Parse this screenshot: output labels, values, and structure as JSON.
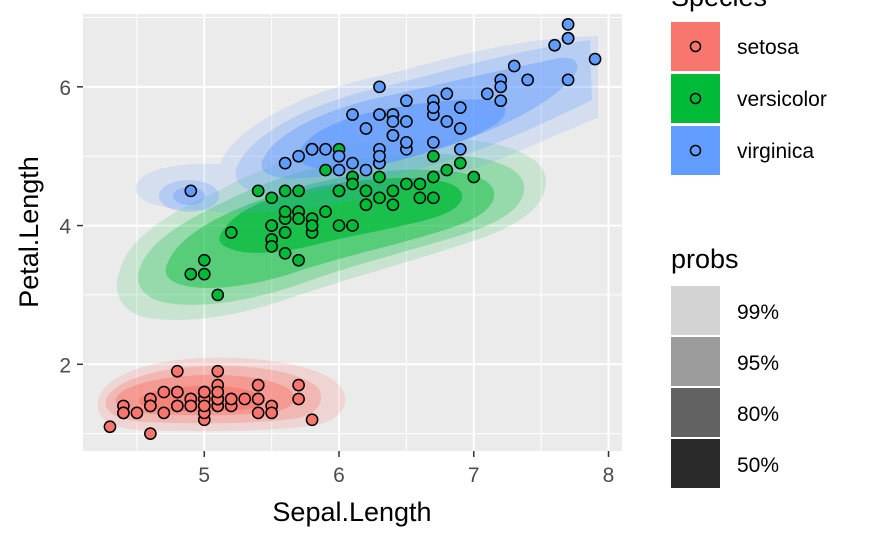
{
  "chart_data": {
    "type": "scatter",
    "title": "",
    "xlabel": "Sepal.Length",
    "ylabel": "Petal.Length",
    "xlim": [
      4.1,
      8.1
    ],
    "ylim": [
      0.75,
      7.05
    ],
    "x_ticks": [
      5,
      6,
      7,
      8
    ],
    "y_ticks": [
      2,
      4,
      6
    ],
    "x_tick_labels": [
      "5",
      "6",
      "7",
      "8"
    ],
    "y_tick_labels": [
      "2",
      "4",
      "6"
    ],
    "grid": true,
    "panel_background": "#ebebeb",
    "legend_position": "right",
    "density_levels": [
      "99%",
      "95%",
      "80%",
      "50%"
    ],
    "legends": [
      {
        "title": "Species",
        "entries": [
          {
            "label": "setosa",
            "color": "#F8766D"
          },
          {
            "label": "versicolor",
            "color": "#00BA38"
          },
          {
            "label": "virginica",
            "color": "#619CFF"
          }
        ]
      },
      {
        "title": "probs",
        "entries": [
          {
            "label": "99%",
            "color": "#d3d3d3"
          },
          {
            "label": "95%",
            "color": "#9b9b9b"
          },
          {
            "label": "80%",
            "color": "#626262"
          },
          {
            "label": "50%",
            "color": "#2a2a2a"
          }
        ]
      }
    ],
    "series": [
      {
        "name": "setosa",
        "color": "#F8766D",
        "points": [
          [
            5.1,
            1.4
          ],
          [
            4.9,
            1.4
          ],
          [
            4.7,
            1.3
          ],
          [
            4.6,
            1.5
          ],
          [
            5.0,
            1.4
          ],
          [
            5.4,
            1.7
          ],
          [
            4.6,
            1.4
          ],
          [
            5.0,
            1.5
          ],
          [
            4.4,
            1.4
          ],
          [
            4.9,
            1.5
          ],
          [
            5.4,
            1.5
          ],
          [
            4.8,
            1.6
          ],
          [
            4.8,
            1.4
          ],
          [
            4.3,
            1.1
          ],
          [
            5.8,
            1.2
          ],
          [
            5.7,
            1.5
          ],
          [
            5.4,
            1.3
          ],
          [
            5.1,
            1.4
          ],
          [
            5.7,
            1.7
          ],
          [
            5.1,
            1.5
          ],
          [
            5.4,
            1.7
          ],
          [
            5.1,
            1.5
          ],
          [
            4.6,
            1.0
          ],
          [
            5.1,
            1.7
          ],
          [
            4.8,
            1.9
          ],
          [
            5.0,
            1.6
          ],
          [
            5.0,
            1.6
          ],
          [
            5.2,
            1.5
          ],
          [
            5.2,
            1.4
          ],
          [
            4.7,
            1.6
          ],
          [
            4.8,
            1.6
          ],
          [
            5.4,
            1.5
          ],
          [
            5.2,
            1.5
          ],
          [
            5.5,
            1.4
          ],
          [
            4.9,
            1.5
          ],
          [
            5.0,
            1.2
          ],
          [
            5.5,
            1.3
          ],
          [
            4.9,
            1.4
          ],
          [
            4.4,
            1.3
          ],
          [
            5.1,
            1.5
          ],
          [
            5.0,
            1.3
          ],
          [
            4.5,
            1.3
          ],
          [
            4.4,
            1.3
          ],
          [
            5.0,
            1.6
          ],
          [
            5.1,
            1.9
          ],
          [
            4.8,
            1.4
          ],
          [
            5.1,
            1.6
          ],
          [
            4.6,
            1.4
          ],
          [
            5.3,
            1.5
          ],
          [
            5.0,
            1.4
          ]
        ]
      },
      {
        "name": "versicolor",
        "color": "#00BA38",
        "points": [
          [
            7.0,
            4.7
          ],
          [
            6.4,
            4.5
          ],
          [
            6.9,
            4.9
          ],
          [
            5.5,
            4.0
          ],
          [
            6.5,
            4.6
          ],
          [
            5.7,
            4.5
          ],
          [
            6.3,
            4.7
          ],
          [
            4.9,
            3.3
          ],
          [
            6.6,
            4.6
          ],
          [
            5.2,
            3.9
          ],
          [
            5.0,
            3.5
          ],
          [
            5.9,
            4.2
          ],
          [
            6.0,
            4.0
          ],
          [
            6.1,
            4.7
          ],
          [
            5.6,
            3.6
          ],
          [
            6.7,
            4.4
          ],
          [
            5.6,
            4.5
          ],
          [
            5.8,
            4.1
          ],
          [
            6.2,
            4.5
          ],
          [
            5.6,
            3.9
          ],
          [
            5.9,
            4.8
          ],
          [
            6.1,
            4.0
          ],
          [
            6.3,
            4.9
          ],
          [
            6.1,
            4.7
          ],
          [
            6.4,
            4.3
          ],
          [
            6.6,
            4.4
          ],
          [
            6.8,
            4.8
          ],
          [
            6.7,
            5.0
          ],
          [
            6.0,
            4.5
          ],
          [
            5.7,
            3.5
          ],
          [
            5.5,
            3.8
          ],
          [
            5.5,
            3.7
          ],
          [
            5.8,
            3.9
          ],
          [
            6.0,
            5.1
          ],
          [
            5.4,
            4.5
          ],
          [
            6.0,
            4.5
          ],
          [
            6.7,
            4.7
          ],
          [
            6.3,
            4.4
          ],
          [
            5.6,
            4.1
          ],
          [
            5.5,
            4.0
          ],
          [
            5.5,
            4.4
          ],
          [
            6.1,
            4.6
          ],
          [
            5.8,
            4.0
          ],
          [
            5.0,
            3.3
          ],
          [
            5.6,
            4.2
          ],
          [
            5.7,
            4.2
          ],
          [
            5.7,
            4.2
          ],
          [
            6.2,
            4.3
          ],
          [
            5.1,
            3.0
          ],
          [
            5.7,
            4.1
          ]
        ]
      },
      {
        "name": "virginica",
        "color": "#619CFF",
        "points": [
          [
            6.3,
            6.0
          ],
          [
            5.8,
            5.1
          ],
          [
            7.1,
            5.9
          ],
          [
            6.3,
            5.6
          ],
          [
            6.5,
            5.8
          ],
          [
            7.6,
            6.6
          ],
          [
            4.9,
            4.5
          ],
          [
            7.3,
            6.3
          ],
          [
            6.7,
            5.8
          ],
          [
            7.2,
            6.1
          ],
          [
            6.5,
            5.1
          ],
          [
            6.4,
            5.3
          ],
          [
            6.8,
            5.5
          ],
          [
            5.7,
            5.0
          ],
          [
            5.8,
            5.1
          ],
          [
            6.4,
            5.3
          ],
          [
            6.5,
            5.5
          ],
          [
            7.7,
            6.7
          ],
          [
            7.7,
            6.9
          ],
          [
            6.0,
            5.0
          ],
          [
            6.9,
            5.7
          ],
          [
            5.6,
            4.9
          ],
          [
            7.7,
            6.7
          ],
          [
            6.3,
            4.9
          ],
          [
            6.7,
            5.7
          ],
          [
            7.2,
            6.0
          ],
          [
            6.2,
            4.8
          ],
          [
            6.1,
            4.9
          ],
          [
            6.4,
            5.6
          ],
          [
            7.2,
            5.8
          ],
          [
            7.4,
            6.1
          ],
          [
            7.9,
            6.4
          ],
          [
            6.4,
            5.6
          ],
          [
            6.3,
            5.1
          ],
          [
            6.1,
            5.6
          ],
          [
            7.7,
            6.1
          ],
          [
            6.3,
            5.6
          ],
          [
            6.4,
            5.5
          ],
          [
            6.0,
            4.8
          ],
          [
            6.9,
            5.4
          ],
          [
            6.7,
            5.6
          ],
          [
            6.9,
            5.1
          ],
          [
            5.8,
            5.1
          ],
          [
            6.8,
            5.9
          ],
          [
            6.7,
            5.7
          ],
          [
            6.7,
            5.2
          ],
          [
            6.3,
            5.0
          ],
          [
            6.5,
            5.2
          ],
          [
            6.2,
            5.4
          ],
          [
            5.9,
            5.1
          ]
        ]
      }
    ]
  }
}
